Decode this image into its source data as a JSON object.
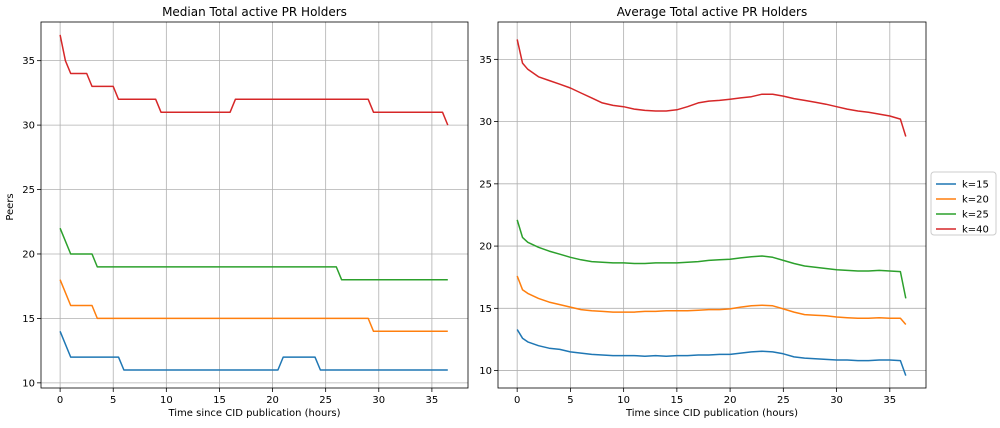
{
  "figure": {
    "ylabel": "Peers",
    "legend": {
      "placement": "right-center",
      "entries": [
        {
          "label": "k=15",
          "color": "#1f77b4"
        },
        {
          "label": "k=20",
          "color": "#ff7f0e"
        },
        {
          "label": "k=25",
          "color": "#2ca02c"
        },
        {
          "label": "k=40",
          "color": "#d62728"
        }
      ]
    }
  },
  "chart_data": [
    {
      "type": "line",
      "title": "Median Total active PR Holders",
      "xlabel": "Time since CID publication (hours)",
      "ylabel": "Peers",
      "xlim": [
        -1.8,
        38.4
      ],
      "ylim": [
        9.6,
        38.0
      ],
      "xticks": [
        0,
        5,
        10,
        15,
        20,
        25,
        30,
        35
      ],
      "yticks": [
        10,
        15,
        20,
        25,
        30,
        35
      ],
      "grid": true,
      "series": [
        {
          "name": "k=15",
          "color": "#1f77b4",
          "points": [
            [
              0,
              14
            ],
            [
              1,
              12
            ],
            [
              5.5,
              12
            ],
            [
              6,
              11
            ],
            [
              20.5,
              11
            ],
            [
              21,
              12
            ],
            [
              24,
              12
            ],
            [
              24.5,
              11
            ],
            [
              36.5,
              11
            ]
          ]
        },
        {
          "name": "k=20",
          "color": "#ff7f0e",
          "points": [
            [
              0,
              18
            ],
            [
              1,
              16
            ],
            [
              3,
              16
            ],
            [
              3.5,
              15
            ],
            [
              29,
              15
            ],
            [
              29.5,
              14
            ],
            [
              36.5,
              14
            ]
          ]
        },
        {
          "name": "k=25",
          "color": "#2ca02c",
          "points": [
            [
              0,
              22
            ],
            [
              1,
              20
            ],
            [
              3,
              20
            ],
            [
              3.5,
              19
            ],
            [
              26,
              19
            ],
            [
              26.5,
              18
            ],
            [
              36.5,
              18
            ]
          ]
        },
        {
          "name": "k=40",
          "color": "#d62728",
          "points": [
            [
              0,
              37
            ],
            [
              0.5,
              35
            ],
            [
              1,
              34
            ],
            [
              2.5,
              34
            ],
            [
              3,
              33
            ],
            [
              5,
              33
            ],
            [
              5.5,
              32
            ],
            [
              9,
              32
            ],
            [
              9.5,
              31
            ],
            [
              16,
              31
            ],
            [
              16.5,
              32
            ],
            [
              29,
              32
            ],
            [
              29.5,
              31
            ],
            [
              36,
              31
            ],
            [
              36.5,
              30
            ]
          ]
        }
      ]
    },
    {
      "type": "line",
      "title": "Average Total active PR Holders",
      "xlabel": "Time since CID publication (hours)",
      "ylabel": "",
      "xlim": [
        -1.8,
        38.4
      ],
      "ylim": [
        8.6,
        38.0
      ],
      "xticks": [
        0,
        5,
        10,
        15,
        20,
        25,
        30,
        35
      ],
      "yticks": [
        10,
        15,
        20,
        25,
        30,
        35
      ],
      "grid": true,
      "series": [
        {
          "name": "k=15",
          "color": "#1f77b4",
          "points": [
            [
              0,
              13.3
            ],
            [
              0.5,
              12.6
            ],
            [
              1,
              12.3
            ],
            [
              2,
              12.0
            ],
            [
              3,
              11.8
            ],
            [
              4,
              11.7
            ],
            [
              5,
              11.5
            ],
            [
              6,
              11.4
            ],
            [
              7,
              11.3
            ],
            [
              8,
              11.25
            ],
            [
              9,
              11.2
            ],
            [
              10,
              11.2
            ],
            [
              11,
              11.2
            ],
            [
              12,
              11.15
            ],
            [
              13,
              11.2
            ],
            [
              14,
              11.15
            ],
            [
              15,
              11.2
            ],
            [
              16,
              11.2
            ],
            [
              17,
              11.25
            ],
            [
              18,
              11.25
            ],
            [
              19,
              11.3
            ],
            [
              20,
              11.3
            ],
            [
              21,
              11.4
            ],
            [
              22,
              11.5
            ],
            [
              23,
              11.55
            ],
            [
              24,
              11.5
            ],
            [
              25,
              11.35
            ],
            [
              26,
              11.1
            ],
            [
              27,
              11.0
            ],
            [
              28,
              10.95
            ],
            [
              29,
              10.9
            ],
            [
              30,
              10.85
            ],
            [
              31,
              10.85
            ],
            [
              32,
              10.8
            ],
            [
              33,
              10.8
            ],
            [
              34,
              10.85
            ],
            [
              35,
              10.85
            ],
            [
              36,
              10.8
            ],
            [
              36.5,
              9.6
            ]
          ]
        },
        {
          "name": "k=20",
          "color": "#ff7f0e",
          "points": [
            [
              0,
              17.6
            ],
            [
              0.5,
              16.5
            ],
            [
              1,
              16.2
            ],
            [
              2,
              15.8
            ],
            [
              3,
              15.5
            ],
            [
              4,
              15.3
            ],
            [
              5,
              15.1
            ],
            [
              6,
              14.9
            ],
            [
              7,
              14.8
            ],
            [
              8,
              14.75
            ],
            [
              9,
              14.7
            ],
            [
              10,
              14.7
            ],
            [
              11,
              14.7
            ],
            [
              12,
              14.75
            ],
            [
              13,
              14.75
            ],
            [
              14,
              14.8
            ],
            [
              15,
              14.8
            ],
            [
              16,
              14.8
            ],
            [
              17,
              14.85
            ],
            [
              18,
              14.9
            ],
            [
              19,
              14.9
            ],
            [
              20,
              14.95
            ],
            [
              21,
              15.1
            ],
            [
              22,
              15.2
            ],
            [
              23,
              15.25
            ],
            [
              24,
              15.2
            ],
            [
              25,
              14.95
            ],
            [
              26,
              14.7
            ],
            [
              27,
              14.5
            ],
            [
              28,
              14.45
            ],
            [
              29,
              14.4
            ],
            [
              30,
              14.3
            ],
            [
              31,
              14.25
            ],
            [
              32,
              14.2
            ],
            [
              33,
              14.2
            ],
            [
              34,
              14.25
            ],
            [
              35,
              14.2
            ],
            [
              36,
              14.2
            ],
            [
              36.5,
              13.7
            ]
          ]
        },
        {
          "name": "k=25",
          "color": "#2ca02c",
          "points": [
            [
              0,
              22.1
            ],
            [
              0.5,
              20.7
            ],
            [
              1,
              20.3
            ],
            [
              2,
              19.9
            ],
            [
              3,
              19.6
            ],
            [
              4,
              19.35
            ],
            [
              5,
              19.1
            ],
            [
              6,
              18.9
            ],
            [
              7,
              18.75
            ],
            [
              8,
              18.7
            ],
            [
              9,
              18.65
            ],
            [
              10,
              18.65
            ],
            [
              11,
              18.6
            ],
            [
              12,
              18.6
            ],
            [
              13,
              18.65
            ],
            [
              14,
              18.65
            ],
            [
              15,
              18.65
            ],
            [
              16,
              18.7
            ],
            [
              17,
              18.75
            ],
            [
              18,
              18.85
            ],
            [
              19,
              18.9
            ],
            [
              20,
              18.95
            ],
            [
              21,
              19.05
            ],
            [
              22,
              19.15
            ],
            [
              23,
              19.2
            ],
            [
              24,
              19.1
            ],
            [
              25,
              18.85
            ],
            [
              26,
              18.6
            ],
            [
              27,
              18.4
            ],
            [
              28,
              18.3
            ],
            [
              29,
              18.2
            ],
            [
              30,
              18.1
            ],
            [
              31,
              18.05
            ],
            [
              32,
              18.0
            ],
            [
              33,
              18.0
            ],
            [
              34,
              18.05
            ],
            [
              35,
              18.0
            ],
            [
              36,
              17.95
            ],
            [
              36.5,
              15.8
            ]
          ]
        },
        {
          "name": "k=40",
          "color": "#d62728",
          "points": [
            [
              0,
              36.6
            ],
            [
              0.5,
              34.7
            ],
            [
              1,
              34.2
            ],
            [
              2,
              33.6
            ],
            [
              3,
              33.3
            ],
            [
              4,
              33.0
            ],
            [
              5,
              32.7
            ],
            [
              6,
              32.3
            ],
            [
              7,
              31.9
            ],
            [
              8,
              31.5
            ],
            [
              9,
              31.3
            ],
            [
              10,
              31.2
            ],
            [
              11,
              31.0
            ],
            [
              12,
              30.9
            ],
            [
              13,
              30.85
            ],
            [
              14,
              30.85
            ],
            [
              15,
              30.95
            ],
            [
              16,
              31.2
            ],
            [
              17,
              31.5
            ],
            [
              18,
              31.65
            ],
            [
              19,
              31.7
            ],
            [
              20,
              31.8
            ],
            [
              21,
              31.9
            ],
            [
              22,
              32.0
            ],
            [
              23,
              32.2
            ],
            [
              24,
              32.2
            ],
            [
              25,
              32.05
            ],
            [
              26,
              31.85
            ],
            [
              27,
              31.7
            ],
            [
              28,
              31.55
            ],
            [
              29,
              31.4
            ],
            [
              30,
              31.2
            ],
            [
              31,
              31.0
            ],
            [
              32,
              30.85
            ],
            [
              33,
              30.75
            ],
            [
              34,
              30.6
            ],
            [
              35,
              30.45
            ],
            [
              36,
              30.2
            ],
            [
              36.5,
              28.8
            ]
          ]
        }
      ]
    }
  ]
}
